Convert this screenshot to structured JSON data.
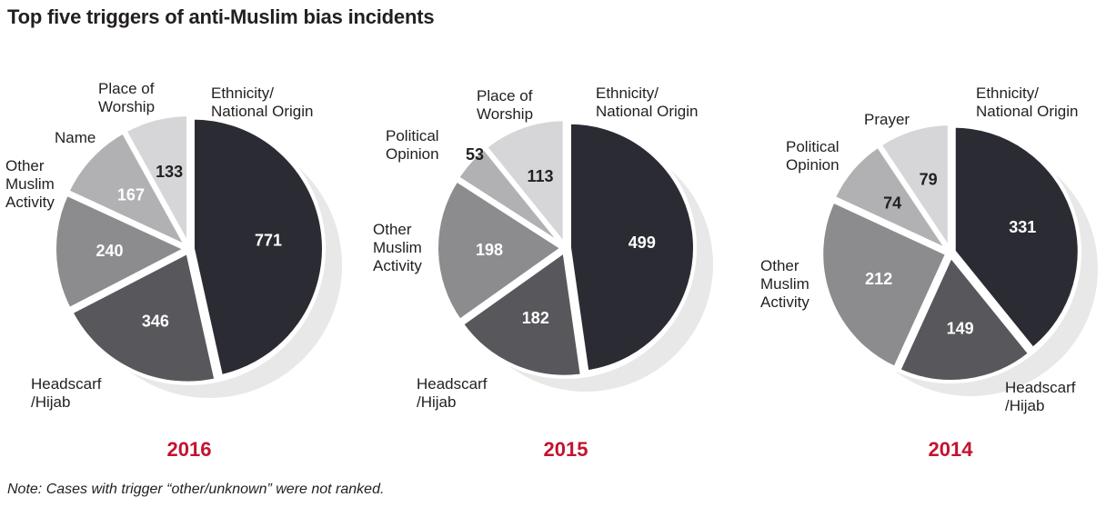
{
  "title": "Top five triggers of anti-Muslim bias incidents",
  "note": "Note: Cases with trigger “other/unknown” were not ranked.",
  "colors": {
    "year": "#c4122f",
    "ethnicity": "#2b2c33",
    "headscarf": "#57575c",
    "other_muslim": "#8c8c8f",
    "political": "#b1b1b3",
    "name": "#b1b1b3",
    "worship": "#d6d6d8",
    "prayer": "#d6d6d8",
    "shadow": "#e8e8e8"
  },
  "chart_data": [
    {
      "type": "pie",
      "year": "2016",
      "slices": [
        {
          "label": "Ethnicity/\nNational Origin",
          "value": 771,
          "color": "#2b2c33",
          "text": "#ffffff"
        },
        {
          "label": "Headscarf\n/Hijab",
          "value": 346,
          "color": "#57575c",
          "text": "#ffffff"
        },
        {
          "label": "Other\nMuslim\nActivity",
          "value": 240,
          "color": "#8c8c8f",
          "text": "#ffffff"
        },
        {
          "label": "Name",
          "value": 167,
          "color": "#b1b1b3",
          "text": "#ffffff"
        },
        {
          "label": "Place of\nWorship",
          "value": 133,
          "color": "#d6d6d8",
          "text": "#231f20"
        }
      ]
    },
    {
      "type": "pie",
      "year": "2015",
      "slices": [
        {
          "label": "Ethnicity/\nNational Origin",
          "value": 499,
          "color": "#2b2c33",
          "text": "#ffffff"
        },
        {
          "label": "Headscarf\n/Hijab",
          "value": 182,
          "color": "#57575c",
          "text": "#ffffff"
        },
        {
          "label": "Other\nMuslim\nActivity",
          "value": 198,
          "color": "#8c8c8f",
          "text": "#ffffff"
        },
        {
          "label": "Political\nOpinion",
          "value": 53,
          "color": "#b1b1b3",
          "text": "#231f20"
        },
        {
          "label": "Place of\nWorship",
          "value": 113,
          "color": "#d6d6d8",
          "text": "#231f20"
        }
      ]
    },
    {
      "type": "pie",
      "year": "2014",
      "slices": [
        {
          "label": "Ethnicity/\nNational Origin",
          "value": 331,
          "color": "#2b2c33",
          "text": "#ffffff"
        },
        {
          "label": "Headscarf\n/Hijab",
          "value": 149,
          "color": "#57575c",
          "text": "#ffffff"
        },
        {
          "label": "Other\nMuslim\nActivity",
          "value": 212,
          "color": "#8c8c8f",
          "text": "#ffffff"
        },
        {
          "label": "Political\nOpinion",
          "value": 74,
          "color": "#b1b1b3",
          "text": "#231f20"
        },
        {
          "label": "Prayer",
          "value": 79,
          "color": "#d6d6d8",
          "text": "#231f20"
        }
      ]
    }
  ]
}
